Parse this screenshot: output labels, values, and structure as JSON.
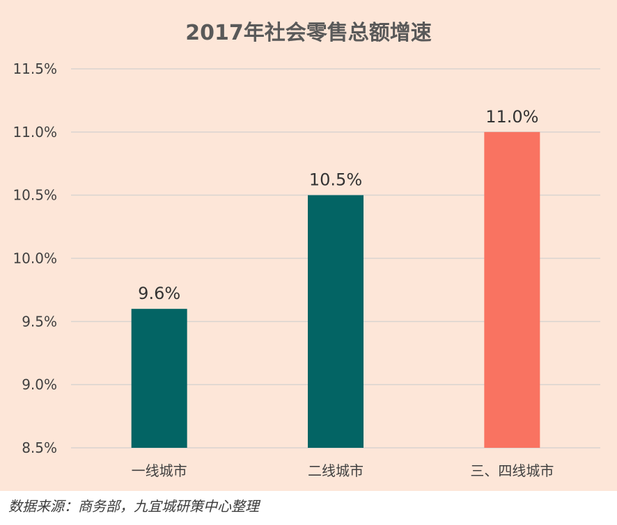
{
  "chart_data": {
    "type": "bar",
    "title": "2017年社会零售总额增速",
    "categories": [
      "一线城市",
      "二线城市",
      "三、四线城市"
    ],
    "values": [
      9.6,
      10.5,
      11.0
    ],
    "value_labels": [
      "9.6%",
      "10.5%",
      "11.0%"
    ],
    "ylim": [
      8.5,
      11.5
    ],
    "yticks": [
      8.5,
      9.0,
      9.5,
      10.0,
      10.5,
      11.0,
      11.5
    ],
    "ytick_labels": [
      "8.5%",
      "9.0%",
      "9.5%",
      "10.0%",
      "10.5%",
      "11.0%",
      "11.5%"
    ],
    "grid": true,
    "bar_colors": [
      "#036464",
      "#036464",
      "#f97361"
    ]
  },
  "colors": {
    "background": "#fde6d8",
    "gridline": "#d9d4d0",
    "title": "#595959",
    "axis_text": "#404040"
  },
  "source": "数据来源：商务部，九宜城研策中心整理"
}
